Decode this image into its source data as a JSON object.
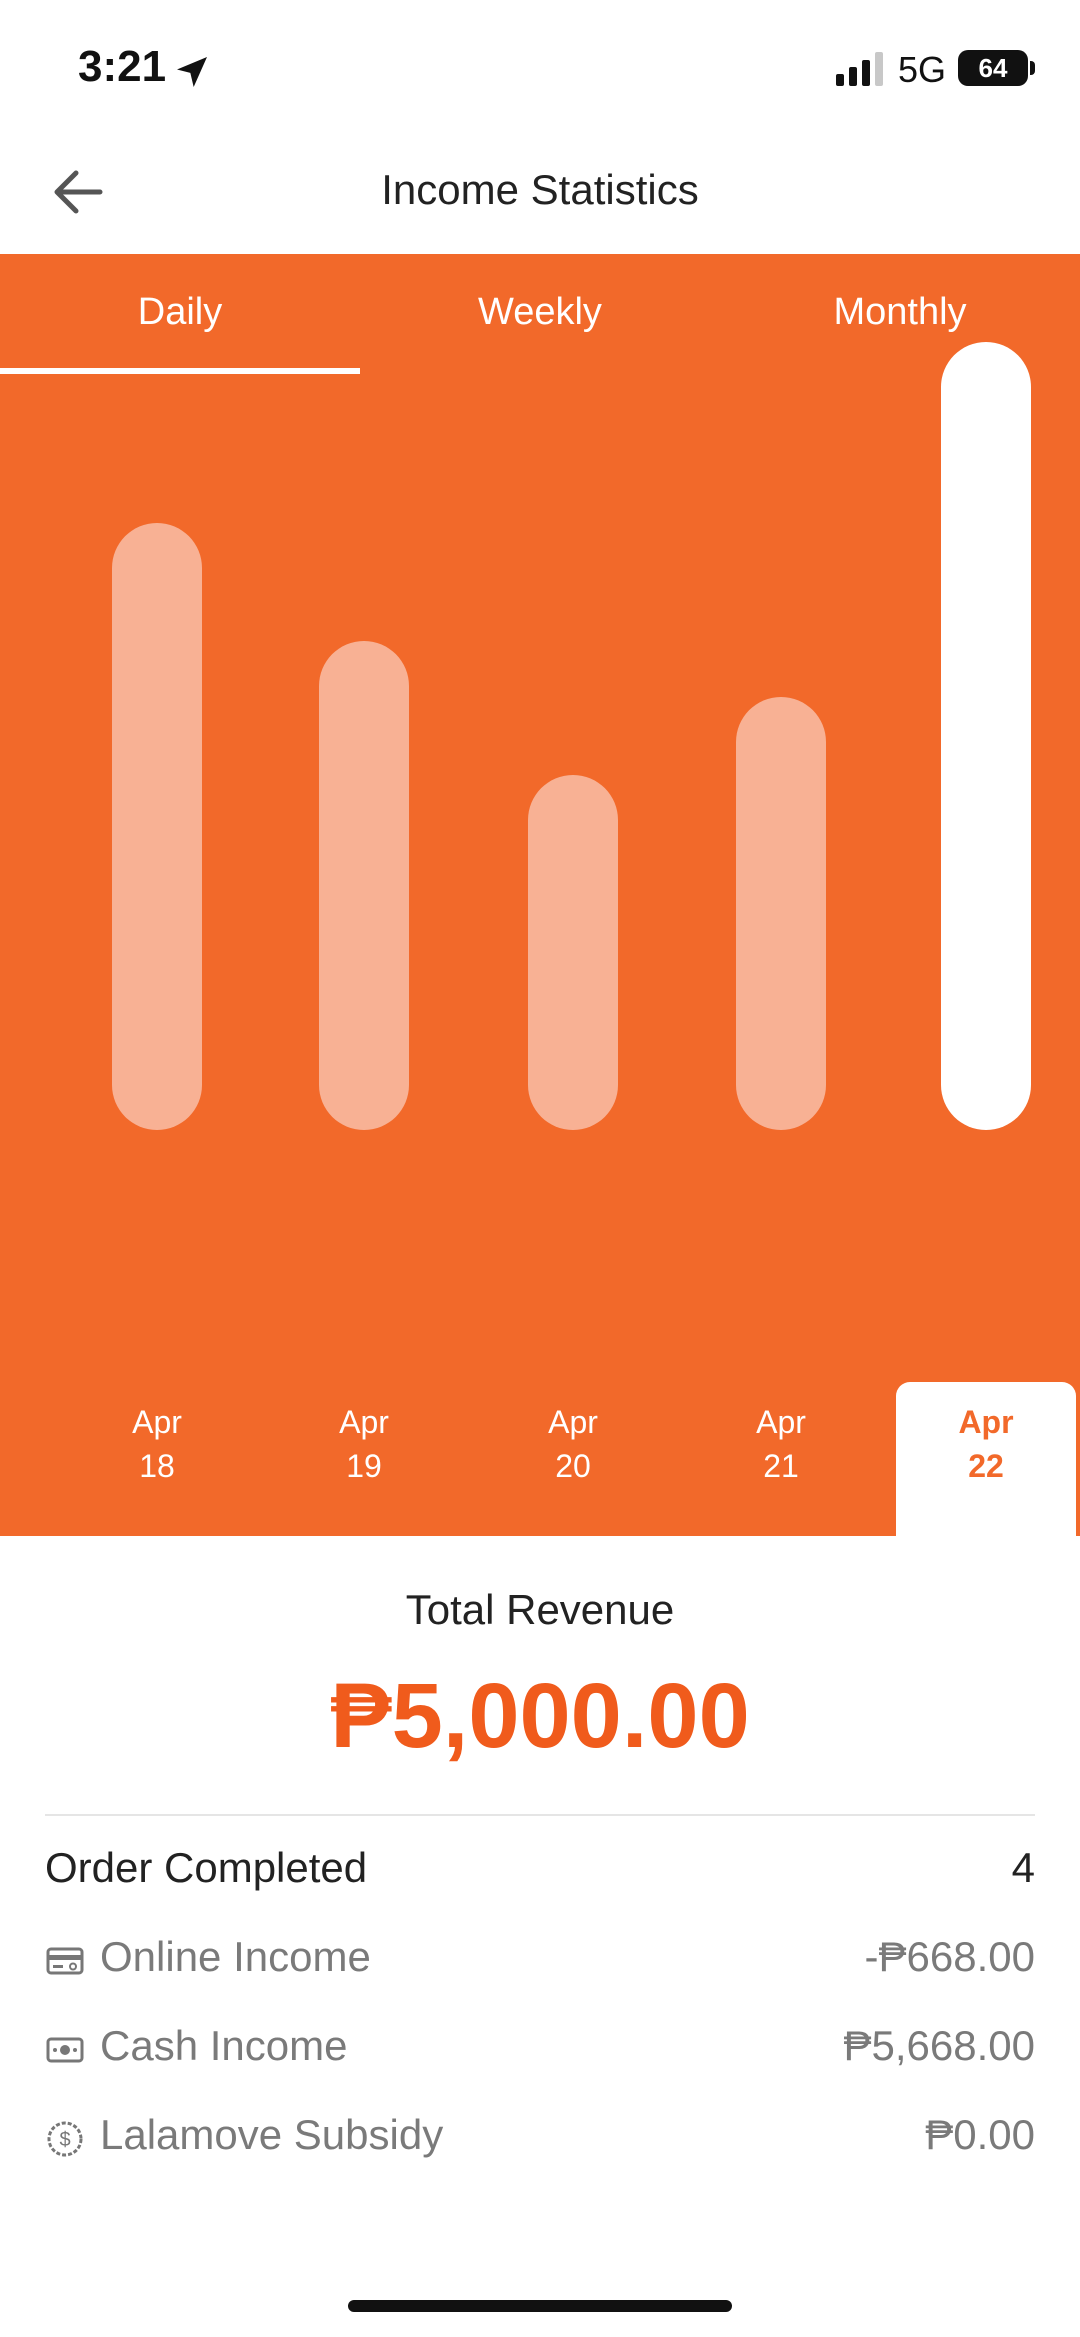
{
  "status_bar": {
    "time": "3:21",
    "network": "5G",
    "battery": "64"
  },
  "header": {
    "title": "Income Statistics"
  },
  "tabs": [
    {
      "label": "Daily",
      "active": true
    },
    {
      "label": "Weekly",
      "active": false
    },
    {
      "label": "Monthly",
      "active": false
    }
  ],
  "colors": {
    "accent": "#f2692a",
    "revenue": "#f05b1c",
    "bar": "#f8b194",
    "bar_selected": "#ffffff"
  },
  "chart_data": {
    "type": "bar",
    "categories": [
      {
        "month": "Apr",
        "day": "18"
      },
      {
        "month": "Apr",
        "day": "19"
      },
      {
        "month": "Apr",
        "day": "20"
      },
      {
        "month": "Apr",
        "day": "21"
      },
      {
        "month": "Apr",
        "day": "22"
      }
    ],
    "values": [
      0.77,
      0.62,
      0.45,
      0.55,
      1.0
    ],
    "selected_index": 4,
    "axes_visible": false,
    "grid": false
  },
  "summary": {
    "total_label": "Total Revenue",
    "total_value": "₱5,000.00",
    "orders": {
      "label": "Order Completed",
      "value": "4"
    },
    "rows": [
      {
        "icon": "credit-card-icon",
        "label": "Online Income",
        "value": "-₱668.00"
      },
      {
        "icon": "cash-icon",
        "label": "Cash Income",
        "value": "₱5,668.00"
      },
      {
        "icon": "dollar-coin-icon",
        "label": "Lalamove Subsidy",
        "value": "₱0.00"
      }
    ]
  }
}
